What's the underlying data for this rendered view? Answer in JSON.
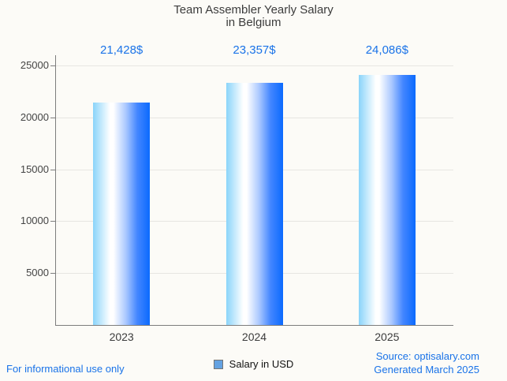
{
  "chart_data": {
    "type": "bar",
    "title": "Team Assembler Yearly Salary in Belgium",
    "title_lines": [
      "Team Assembler Yearly Salary",
      "in Belgium"
    ],
    "categories": [
      "2023",
      "2024",
      "2025"
    ],
    "series": [
      {
        "name": "Salary in USD",
        "values": [
          21428,
          23357,
          24086
        ]
      }
    ],
    "value_labels": [
      "21,428$",
      "23,357$",
      "24,086$"
    ],
    "xlabel": "",
    "ylabel": "",
    "ylim": [
      0,
      25000
    ],
    "yticks": [
      5000,
      10000,
      15000,
      20000,
      25000
    ],
    "grid": true,
    "legend_position": "bottom"
  },
  "legend": {
    "label": "Salary in USD"
  },
  "footer": {
    "disclaimer": "For informational use only",
    "source": "Source: optisalary.com",
    "generated": "Generated March 2025"
  },
  "colors": {
    "accent_blue": "#1a73e8",
    "title_gray": "#3c3c3c",
    "axis_gray": "#7d7d7d",
    "grid_gray": "#e7e6e2",
    "background": "#fcfbf7",
    "bar_gradient": [
      "#8ad4fa",
      "#ffffff",
      "#aac8ff",
      "#4386ff",
      "#0b6afe"
    ],
    "legend_swatch_fill": "#64a2e2",
    "legend_swatch_border": "#757575"
  }
}
